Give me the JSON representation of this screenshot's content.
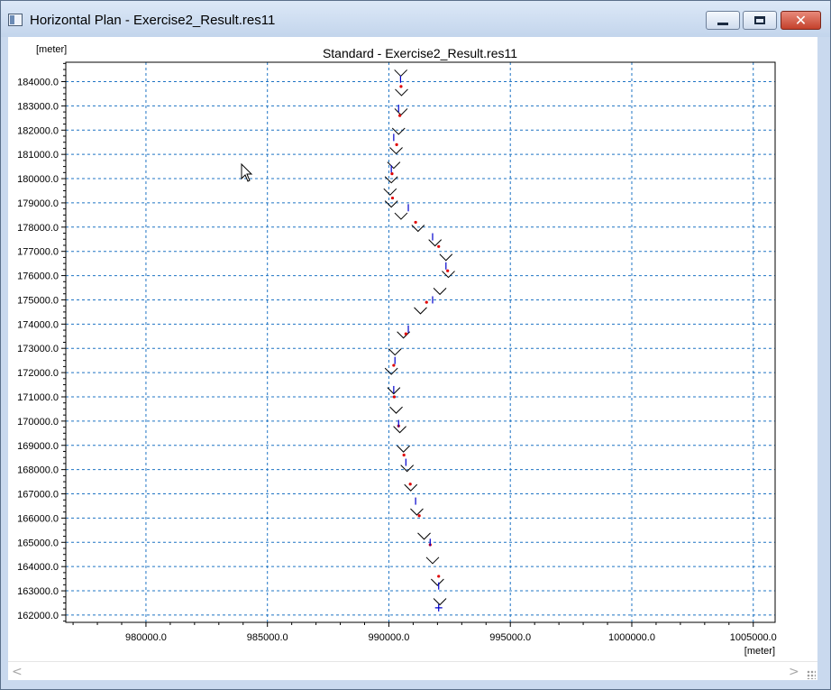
{
  "window": {
    "title": "Horizontal Plan - Exercise2_Result.res11",
    "icon": "app-window-icon",
    "minimize_glyph": "minimize-icon",
    "maximize_glyph": "maximize-icon",
    "close_glyph": "✕"
  },
  "plot": {
    "y_unit": "[meter]",
    "x_unit": "[meter]",
    "grid_color": "#1f74c4",
    "axis_color": "#000000"
  },
  "chart_data": {
    "type": "scatter",
    "title": "Standard - Exercise2_Result.res11",
    "xlabel": "[meter]",
    "ylabel": "[meter]",
    "xlim": [
      976700,
      1005900
    ],
    "ylim": [
      161700,
      184800
    ],
    "x_ticks": [
      980000,
      985000,
      990000,
      995000,
      1000000,
      1005000
    ],
    "x_tick_labels": [
      "980000.0",
      "985000.0",
      "990000.0",
      "995000.0",
      "1000000.0",
      "1005000.0"
    ],
    "y_ticks": [
      162000,
      163000,
      164000,
      165000,
      166000,
      167000,
      168000,
      169000,
      170000,
      171000,
      172000,
      173000,
      174000,
      175000,
      176000,
      177000,
      178000,
      179000,
      180000,
      181000,
      182000,
      183000,
      184000
    ],
    "y_tick_labels": [
      "162000.0",
      "163000.0",
      "164000.0",
      "165000.0",
      "166000.0",
      "167000.0",
      "168000.0",
      "169000.0",
      "170000.0",
      "171000.0",
      "172000.0",
      "173000.0",
      "174000.0",
      "175000.0",
      "176000.0",
      "177000.0",
      "178000.0",
      "179000.0",
      "180000.0",
      "181000.0",
      "182000.0",
      "183000.0",
      "184000.0"
    ],
    "grid": true,
    "legend": "none",
    "series": [
      {
        "marker": "chevron-v",
        "color": "#000000",
        "x": [
          990490,
          990520,
          990500,
          990400,
          990300,
          990200,
          990100,
          990050,
          990100,
          990500,
          991200,
          991900,
          992350,
          992450,
          992100,
          991300,
          990600,
          990250,
          990100,
          990200,
          990300,
          990450,
          990600,
          990750,
          990900,
          991150,
          991450,
          991800,
          992000,
          992100
        ],
        "y": [
          184300,
          183500,
          182700,
          181900,
          181100,
          180500,
          179900,
          179400,
          178900,
          178400,
          177900,
          177300,
          176700,
          176000,
          175300,
          174500,
          173500,
          172800,
          172000,
          171200,
          170400,
          169600,
          168800,
          168000,
          167200,
          166200,
          165200,
          164200,
          163300,
          162500
        ]
      },
      {
        "marker": "red-dot",
        "color": "#e00000",
        "x": [
          990500,
          990450,
          990320,
          990130,
          990150,
          991100,
          992050,
          992420,
          991550,
          990700,
          990200,
          990220,
          990400,
          990620,
          990880,
          991250,
          991700,
          992050
        ],
        "y": [
          183800,
          182600,
          181400,
          180200,
          179200,
          178200,
          177200,
          176200,
          174900,
          173600,
          172300,
          171000,
          169800,
          168600,
          167400,
          166100,
          164900,
          163600
        ]
      },
      {
        "marker": "blue-tick",
        "color": "#0000cc",
        "x": [
          990480,
          990400,
          990200,
          990100,
          990800,
          991800,
          992350,
          991800,
          990800,
          990250,
          990200,
          990400,
          990700,
          991100,
          991700,
          992050
        ],
        "y": [
          184100,
          182900,
          181700,
          180400,
          178800,
          177600,
          176400,
          175000,
          173800,
          172500,
          171300,
          169900,
          168300,
          166700,
          165000,
          163200
        ]
      },
      {
        "marker": "endpoint-cross",
        "color": "#0000cc",
        "x": [
          992050
        ],
        "y": [
          162300
        ]
      }
    ]
  }
}
